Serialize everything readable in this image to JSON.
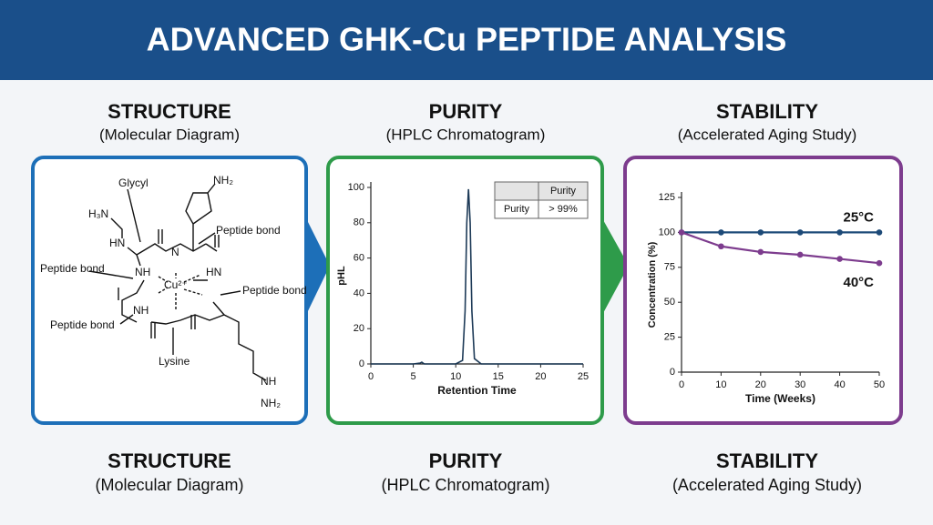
{
  "header": {
    "title": "ADVANCED GHK-Cu PEPTIDE ANALYSIS"
  },
  "panels": [
    {
      "title": "STRUCTURE",
      "subtitle": "(Molecular Diagram)"
    },
    {
      "title": "PURITY",
      "subtitle": "(HPLC Chromatogram)"
    },
    {
      "title": "STABILITY",
      "subtitle": "(Accelerated Aging Study)"
    }
  ],
  "footer": [
    {
      "title": "STRUCTURE",
      "subtitle": "(Molecular Diagram)"
    },
    {
      "title": "PURITY",
      "subtitle": "(HPLC Chromatogram)"
    },
    {
      "title": "STABILITY",
      "subtitle": "(Accelerated Aging Study)"
    }
  ],
  "diagram": {
    "labels": [
      "H₃N",
      "Glycyl",
      "NH₂",
      "HN",
      "Peptide bond",
      "Peptide bond",
      "NH",
      "Cu²⁺",
      "HN",
      "N",
      "Peptide bond",
      "Peptide bond",
      "NH",
      "Lysine",
      "NH",
      "NH₂"
    ]
  },
  "chart_data": [
    {
      "type": "line",
      "xlabel": "Retention Time",
      "ylabel": "pHL",
      "x": [
        0,
        5,
        5.8,
        6,
        6.3,
        10,
        10.8,
        11.1,
        11.3,
        11.5,
        11.7,
        11.9,
        12.2,
        13,
        25
      ],
      "values": [
        0,
        0,
        0.5,
        1,
        0,
        0,
        2,
        30,
        80,
        99,
        80,
        30,
        3,
        0,
        0
      ],
      "color": "#1d3a57",
      "xlim": [
        0,
        25
      ],
      "xticks": [
        0,
        5,
        10,
        15,
        20,
        25
      ],
      "ylim": [
        0,
        100
      ],
      "yticks": [
        0,
        20,
        40,
        60,
        80,
        100
      ],
      "table": {
        "header": "Purity",
        "rows": [
          [
            "Purity",
            "> 99%"
          ]
        ]
      }
    },
    {
      "type": "line",
      "xlabel": "Time (Weeks)",
      "ylabel": "Concentration (%)",
      "x": [
        0,
        10,
        20,
        30,
        40,
        50
      ],
      "series": [
        {
          "name": "25°C",
          "color": "#1d4a78",
          "values": [
            100,
            100,
            100,
            100,
            100,
            100
          ]
        },
        {
          "name": "40°C",
          "color": "#7d3c8e",
          "values": [
            100,
            90,
            86,
            84,
            81,
            78
          ]
        }
      ],
      "xlim": [
        0,
        50
      ],
      "xticks": [
        0,
        10,
        20,
        30,
        40,
        50
      ],
      "ylim": [
        0,
        125
      ],
      "yticks": [
        0,
        25,
        50,
        75,
        100,
        125
      ],
      "markers": true,
      "legend": "line-end"
    }
  ]
}
